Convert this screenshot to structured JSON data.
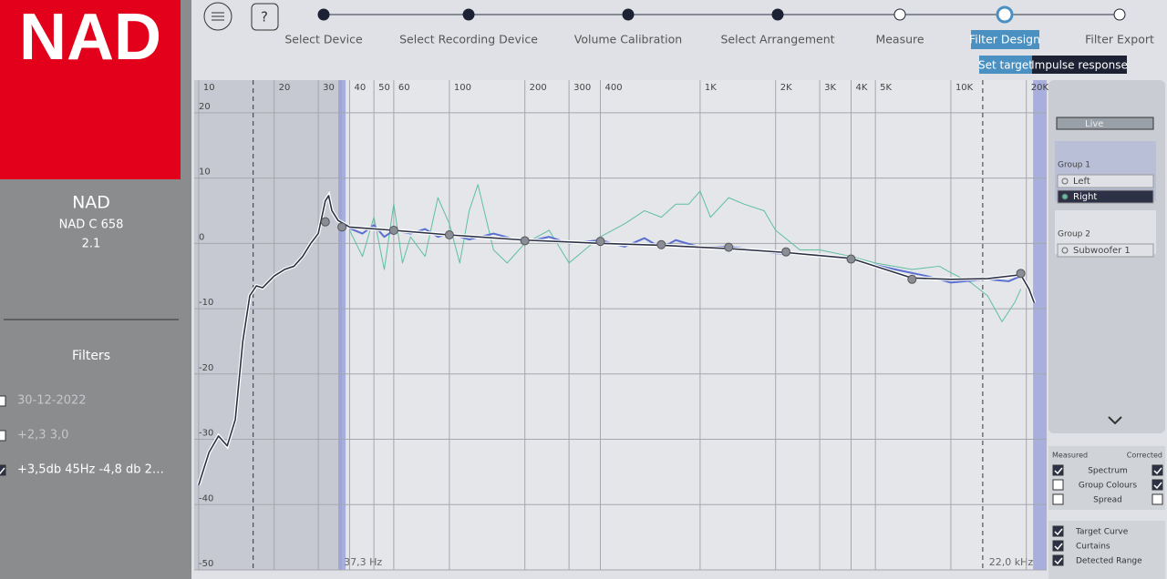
{
  "sidebar": {
    "logo": "NAD",
    "device": "NAD",
    "model": "NAD C 658",
    "channels": "2.1",
    "filters_title": "Filters",
    "filters": [
      {
        "label": "30-12-2022",
        "checked": false
      },
      {
        "label": "+2,3   3,0",
        "checked": false
      },
      {
        "label": "+3,5db  45Hz  -4,8 db 2…",
        "checked": true
      }
    ]
  },
  "steps": [
    {
      "label": "Select Device",
      "state": "done"
    },
    {
      "label": "Select Recording Device",
      "state": "done"
    },
    {
      "label": "Volume Calibration",
      "state": "done"
    },
    {
      "label": "Select Arrangement",
      "state": "done"
    },
    {
      "label": "Measure",
      "state": "todo"
    },
    {
      "label": "Filter Design",
      "state": "current"
    },
    {
      "label": "Filter Export",
      "state": "todo"
    }
  ],
  "tabs": [
    "Set target",
    "Impulse response"
  ],
  "chart_data": {
    "type": "line",
    "log_x": true,
    "grid": true,
    "xlim": [
      9.6,
      24100
    ],
    "ylim": [
      -50,
      25
    ],
    "xticks": [
      10,
      20,
      30,
      40,
      50,
      60,
      100,
      200,
      300,
      400,
      {
        "value": 1000,
        "label": "1K"
      },
      {
        "value": 2000,
        "label": "2K"
      },
      {
        "value": 3000,
        "label": "3K"
      },
      {
        "value": 4000,
        "label": "4K"
      },
      {
        "value": 5000,
        "label": "5K"
      },
      {
        "value": 10000,
        "label": "10K"
      },
      {
        "value": 20000,
        "label": "20K"
      }
    ],
    "yticks": [
      20,
      10,
      0,
      -10,
      -20,
      -30,
      -40,
      -50
    ],
    "curtain_low": {
      "value": 37.3,
      "label": "37,3 Hz"
    },
    "curtain_high": {
      "value": 22000,
      "label": "22,0 kHz"
    },
    "detected_range": [
      16.5,
      13400
    ],
    "measured": {
      "color": "#5fbf9f",
      "x": [
        40,
        45,
        50,
        55,
        60,
        65,
        70,
        80,
        90,
        100,
        110,
        120,
        130,
        150,
        170,
        200,
        250,
        300,
        400,
        500,
        600,
        700,
        800,
        900,
        1000,
        1100,
        1300,
        1500,
        1800,
        2000,
        2500,
        3000,
        4000,
        5000,
        7000,
        9000,
        10000,
        12000,
        14000,
        16000,
        18000,
        19000
      ],
      "values": [
        2,
        -2,
        4,
        -4,
        6,
        -3,
        1,
        -2,
        7,
        3,
        -3,
        5,
        9,
        -1,
        -3,
        0,
        2,
        -3,
        1,
        3,
        5,
        4,
        6,
        6,
        8,
        4,
        7,
        6,
        5,
        2,
        -1,
        -1,
        -2,
        -3,
        -4,
        -3.5,
        -4.5,
        -6,
        -8,
        -12,
        -9,
        -7
      ]
    },
    "corrected": {
      "color": "#5a6fd0",
      "x": [
        40,
        45,
        50,
        55,
        60,
        70,
        80,
        90,
        100,
        120,
        150,
        200,
        250,
        300,
        400,
        500,
        600,
        700,
        800,
        1000,
        1300,
        2000,
        3000,
        4000,
        6000,
        8000,
        10000,
        14000,
        17000,
        19000
      ],
      "values": [
        2.3,
        1.5,
        2.8,
        1,
        2,
        1.5,
        2.2,
        1,
        1.5,
        0.6,
        1.5,
        0.2,
        1,
        0,
        0.5,
        -0.5,
        0.8,
        -0.7,
        0.5,
        -0.6,
        -0.5,
        -1.5,
        -1.8,
        -2.5,
        -4,
        -5,
        -6,
        -5.5,
        -5.8,
        -5
      ]
    },
    "target": {
      "color": "#2c3145",
      "x": [
        10,
        11,
        12,
        13,
        14,
        15,
        16,
        17,
        18,
        20,
        22,
        24,
        26,
        28,
        30,
        32,
        33,
        34,
        36,
        40,
        60,
        100,
        200,
        400,
        700,
        1300,
        2200,
        4000,
        7000,
        10000,
        14000,
        19000,
        20500,
        21500
      ],
      "values": [
        -37,
        -32,
        -29.5,
        -31,
        -27,
        -15,
        -8,
        -6.5,
        -6.8,
        -5,
        -4,
        -3.5,
        -2,
        0,
        1.5,
        6.5,
        7.3,
        5,
        3.5,
        2.5,
        2,
        1.3,
        0.5,
        0,
        -0.3,
        -0.8,
        -1.4,
        -2.3,
        -5.3,
        -5.5,
        -5.4,
        -4.8,
        -7,
        -9.1
      ]
    },
    "control_points": {
      "x": [
        32,
        37.3,
        60,
        100,
        200,
        400,
        700,
        1300,
        2200,
        4000,
        7000,
        19000
      ],
      "values": [
        3.3,
        2.5,
        2,
        1.3,
        0.4,
        0.3,
        -0.2,
        -0.6,
        -1.3,
        -2.4,
        -5.5,
        -4.6
      ]
    }
  },
  "groups_panel": {
    "live": "Live",
    "groups": [
      {
        "name": "Group 1",
        "channels": [
          {
            "label": "Left",
            "selected": false
          },
          {
            "label": "Right",
            "selected": true
          }
        ]
      },
      {
        "name": "Group 2",
        "channels": [
          {
            "label": "Subwoofer 1",
            "selected": false
          }
        ]
      }
    ]
  },
  "display_options": {
    "measured": "Measured",
    "corrected": "Corrected",
    "rows": [
      {
        "label": "Spectrum",
        "measured": true,
        "corrected": true
      },
      {
        "label": "Group Colours",
        "measured": false,
        "corrected": true
      },
      {
        "label": "Spread",
        "measured": false,
        "corrected": false
      }
    ],
    "toggles": [
      {
        "label": "Target Curve",
        "checked": true
      },
      {
        "label": "Curtains",
        "checked": true
      },
      {
        "label": "Detected Range",
        "checked": true
      }
    ]
  }
}
